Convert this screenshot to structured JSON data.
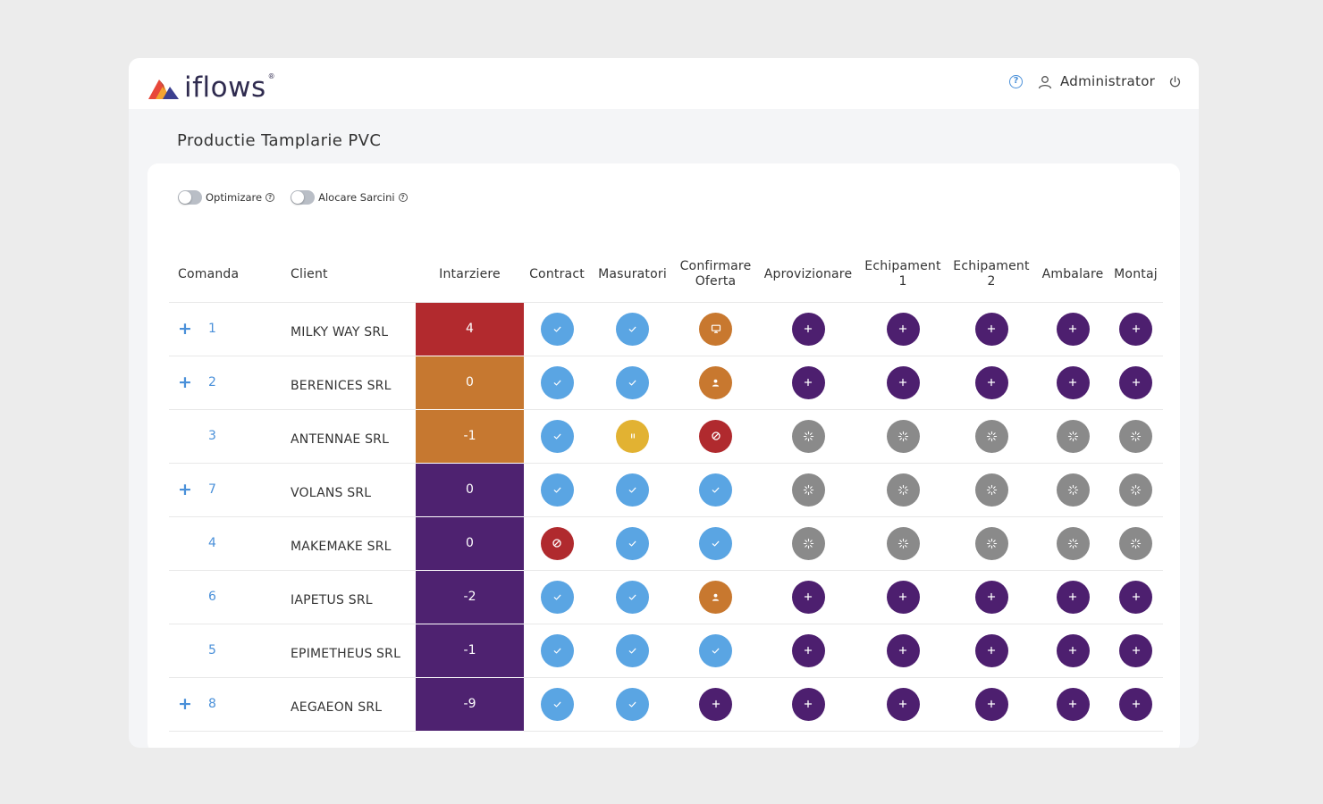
{
  "app": {
    "logo_text": "iflows",
    "logo_reg": "®"
  },
  "header": {
    "user_name": "Administrator"
  },
  "page": {
    "title": "Productie Tamplarie PVC"
  },
  "toggles": [
    {
      "label": "Optimizare",
      "on": false
    },
    {
      "label": "Alocare Sarcini",
      "on": false
    }
  ],
  "columns": {
    "comanda": "Comanda",
    "client": "Client",
    "intarziere": "Intarziere",
    "contract": "Contract",
    "masuratori": "Masuratori",
    "confirmare_1": "Confirmare",
    "confirmare_2": "Oferta",
    "aprovizionare": "Aprovizionare",
    "echip1_1": "Echipament",
    "echip1_2": "1",
    "echip2_1": "Echipament",
    "echip2_2": "2",
    "ambalare": "Ambalare",
    "montaj": "Montaj"
  },
  "status_styles": {
    "done": {
      "color": "#5aa5e3",
      "icon": "check-icon"
    },
    "add": {
      "color": "#4d1f6f",
      "icon": "plus-icon"
    },
    "pending": {
      "color": "#8a8a8a",
      "icon": "loading-icon"
    },
    "presentation": {
      "color": "#c8782f",
      "icon": "monitor-icon"
    },
    "assigned": {
      "color": "#c8782f",
      "icon": "person-icon"
    },
    "blocked": {
      "color": "#b02a2e",
      "icon": "cancel-icon"
    },
    "paused": {
      "color": "#e2b232",
      "icon": "pause-icon"
    }
  },
  "rows": [
    {
      "has_plus": true,
      "comanda": "1",
      "client": "MILKY WAY SRL",
      "intarziere": "4",
      "delay_color": "#b22a2e",
      "statuses": [
        "done",
        "done",
        "presentation",
        "add",
        "add",
        "add",
        "add",
        "add"
      ]
    },
    {
      "has_plus": true,
      "comanda": "2",
      "client": "BERENICES SRL",
      "intarziere": "0",
      "delay_color": "#c67830",
      "statuses": [
        "done",
        "done",
        "assigned",
        "add",
        "add",
        "add",
        "add",
        "add"
      ]
    },
    {
      "has_plus": false,
      "comanda": "3",
      "client": "ANTENNAE SRL",
      "intarziere": "-1",
      "delay_color": "#c67830",
      "statuses": [
        "done",
        "paused",
        "blocked",
        "pending",
        "pending",
        "pending",
        "pending",
        "pending"
      ]
    },
    {
      "has_plus": true,
      "comanda": "7",
      "client": "VOLANS SRL",
      "intarziere": "0",
      "delay_color": "#4e2270",
      "statuses": [
        "done",
        "done",
        "done",
        "pending",
        "pending",
        "pending",
        "pending",
        "pending"
      ]
    },
    {
      "has_plus": false,
      "comanda": "4",
      "client": "MAKEMAKE SRL",
      "intarziere": "0",
      "delay_color": "#4e2270",
      "statuses": [
        "blocked",
        "done",
        "done",
        "pending",
        "pending",
        "pending",
        "pending",
        "pending"
      ]
    },
    {
      "has_plus": false,
      "comanda": "6",
      "client": "IAPETUS SRL",
      "intarziere": "-2",
      "delay_color": "#4e2270",
      "statuses": [
        "done",
        "done",
        "assigned",
        "add",
        "add",
        "add",
        "add",
        "add"
      ]
    },
    {
      "has_plus": false,
      "comanda": "5",
      "client": "EPIMETHEUS SRL",
      "intarziere": "-1",
      "delay_color": "#4e2270",
      "statuses": [
        "done",
        "done",
        "done",
        "add",
        "add",
        "add",
        "add",
        "add"
      ]
    },
    {
      "has_plus": true,
      "comanda": "8",
      "client": "AEGAEON SRL",
      "intarziere": "-9",
      "delay_color": "#4e2270",
      "statuses": [
        "done",
        "done",
        "add",
        "add",
        "add",
        "add",
        "add",
        "add"
      ]
    }
  ]
}
